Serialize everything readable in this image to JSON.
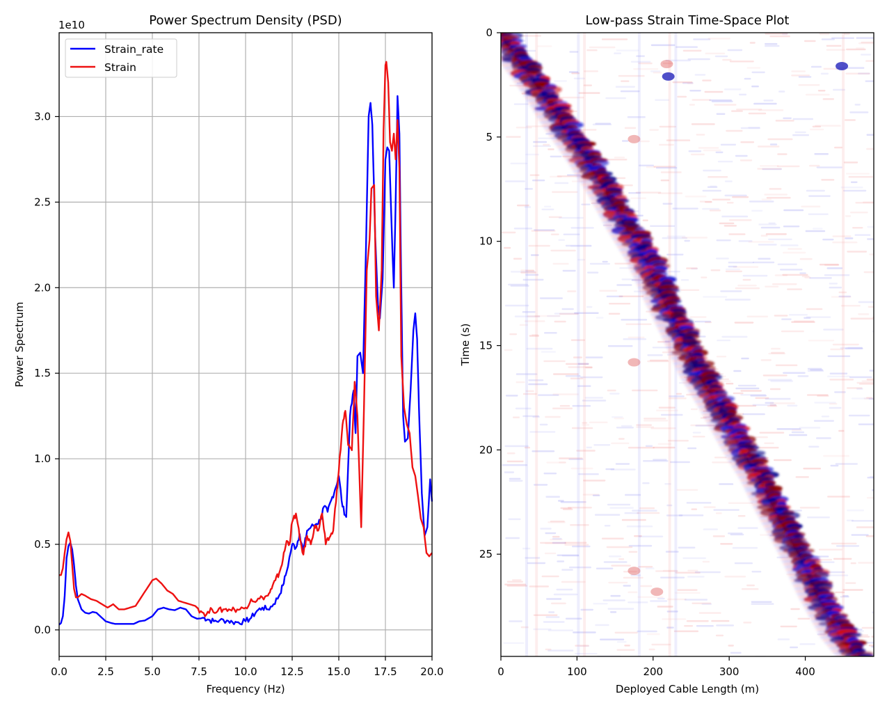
{
  "chart_data": [
    {
      "type": "line",
      "title": "Power Spectrum Density (PSD)",
      "xlabel": "Frequency (Hz)",
      "ylabel": "Power Spectrum",
      "y_offset_label": "1e10",
      "y_scale": 10000000000.0,
      "xlim": [
        0,
        20
      ],
      "ylim": [
        -0.155,
        3.49
      ],
      "xticks": [
        0,
        2.5,
        5,
        7.5,
        10,
        12.5,
        15,
        17.5,
        20
      ],
      "xtick_labels": [
        "0.0",
        "2.5",
        "5.0",
        "7.5",
        "10.0",
        "12.5",
        "15.0",
        "17.5",
        "20.0"
      ],
      "yticks": [
        0,
        0.5,
        1.0,
        1.5,
        2.0,
        2.5,
        3.0
      ],
      "ytick_labels": [
        "0.0",
        "0.5",
        "1.0",
        "1.5",
        "2.0",
        "2.5",
        "3.0"
      ],
      "grid": true,
      "legend_position": "top-left",
      "series": [
        {
          "name": "Strain_rate",
          "color": "#0000ff",
          "points": [
            [
              0.0,
              0.03
            ],
            [
              0.1,
              0.04
            ],
            [
              0.2,
              0.08
            ],
            [
              0.3,
              0.2
            ],
            [
              0.4,
              0.42
            ],
            [
              0.5,
              0.49
            ],
            [
              0.6,
              0.51
            ],
            [
              0.7,
              0.47
            ],
            [
              0.8,
              0.38
            ],
            [
              0.9,
              0.26
            ],
            [
              1.0,
              0.18
            ],
            [
              1.2,
              0.12
            ],
            [
              1.4,
              0.1
            ],
            [
              1.6,
              0.095
            ],
            [
              1.8,
              0.105
            ],
            [
              2.0,
              0.1
            ],
            [
              2.2,
              0.08
            ],
            [
              2.5,
              0.05
            ],
            [
              2.8,
              0.04
            ],
            [
              3.0,
              0.035
            ],
            [
              3.5,
              0.035
            ],
            [
              4.0,
              0.035
            ],
            [
              4.3,
              0.05
            ],
            [
              4.6,
              0.055
            ],
            [
              5.0,
              0.08
            ],
            [
              5.3,
              0.12
            ],
            [
              5.6,
              0.13
            ],
            [
              5.9,
              0.12
            ],
            [
              6.2,
              0.115
            ],
            [
              6.5,
              0.13
            ],
            [
              6.8,
              0.12
            ],
            [
              7.1,
              0.08
            ],
            [
              7.4,
              0.065
            ],
            [
              7.8,
              0.07
            ],
            [
              8.0,
              0.06
            ],
            [
              8.3,
              0.05
            ],
            [
              8.6,
              0.055
            ],
            [
              9.0,
              0.055
            ],
            [
              9.3,
              0.045
            ],
            [
              9.6,
              0.045
            ],
            [
              10.0,
              0.05
            ],
            [
              10.3,
              0.07
            ],
            [
              10.6,
              0.11
            ],
            [
              10.9,
              0.13
            ],
            [
              11.2,
              0.12
            ],
            [
              11.5,
              0.15
            ],
            [
              11.8,
              0.2
            ],
            [
              12.0,
              0.26
            ],
            [
              12.2,
              0.34
            ],
            [
              12.5,
              0.5
            ],
            [
              12.7,
              0.48
            ],
            [
              12.9,
              0.56
            ],
            [
              13.1,
              0.46
            ],
            [
              13.3,
              0.58
            ],
            [
              13.5,
              0.6
            ],
            [
              13.8,
              0.62
            ],
            [
              14.0,
              0.64
            ],
            [
              14.2,
              0.72
            ],
            [
              14.4,
              0.69
            ],
            [
              14.6,
              0.76
            ],
            [
              14.8,
              0.82
            ],
            [
              15.0,
              0.9
            ],
            [
              15.2,
              0.72
            ],
            [
              15.4,
              0.66
            ],
            [
              15.6,
              1.25
            ],
            [
              15.8,
              1.4
            ],
            [
              15.9,
              1.15
            ],
            [
              16.0,
              1.6
            ],
            [
              16.15,
              1.62
            ],
            [
              16.3,
              1.5
            ],
            [
              16.45,
              2.2
            ],
            [
              16.6,
              3.0
            ],
            [
              16.7,
              3.08
            ],
            [
              16.8,
              2.95
            ],
            [
              16.95,
              2.3
            ],
            [
              17.1,
              1.9
            ],
            [
              17.2,
              1.82
            ],
            [
              17.35,
              2.05
            ],
            [
              17.5,
              2.75
            ],
            [
              17.6,
              2.82
            ],
            [
              17.7,
              2.8
            ],
            [
              17.85,
              2.3
            ],
            [
              17.95,
              2.0
            ],
            [
              18.05,
              2.5
            ],
            [
              18.15,
              3.12
            ],
            [
              18.25,
              2.9
            ],
            [
              18.35,
              2.0
            ],
            [
              18.45,
              1.25
            ],
            [
              18.55,
              1.1
            ],
            [
              18.7,
              1.12
            ],
            [
              18.85,
              1.4
            ],
            [
              19.0,
              1.75
            ],
            [
              19.1,
              1.85
            ],
            [
              19.2,
              1.7
            ],
            [
              19.3,
              1.3
            ],
            [
              19.45,
              0.8
            ],
            [
              19.6,
              0.55
            ],
            [
              19.75,
              0.6
            ],
            [
              19.9,
              0.88
            ],
            [
              20.0,
              0.75
            ]
          ]
        },
        {
          "name": "Strain",
          "color": "#ee1111",
          "points": [
            [
              0.0,
              0.32
            ],
            [
              0.1,
              0.32
            ],
            [
              0.2,
              0.36
            ],
            [
              0.3,
              0.45
            ],
            [
              0.4,
              0.53
            ],
            [
              0.5,
              0.57
            ],
            [
              0.6,
              0.52
            ],
            [
              0.7,
              0.38
            ],
            [
              0.8,
              0.24
            ],
            [
              0.9,
              0.19
            ],
            [
              1.0,
              0.19
            ],
            [
              1.2,
              0.21
            ],
            [
              1.4,
              0.2
            ],
            [
              1.7,
              0.18
            ],
            [
              2.0,
              0.17
            ],
            [
              2.3,
              0.15
            ],
            [
              2.6,
              0.13
            ],
            [
              2.9,
              0.15
            ],
            [
              3.2,
              0.12
            ],
            [
              3.5,
              0.12
            ],
            [
              3.8,
              0.13
            ],
            [
              4.1,
              0.14
            ],
            [
              4.4,
              0.19
            ],
            [
              4.7,
              0.24
            ],
            [
              5.0,
              0.29
            ],
            [
              5.2,
              0.3
            ],
            [
              5.5,
              0.27
            ],
            [
              5.8,
              0.23
            ],
            [
              6.1,
              0.21
            ],
            [
              6.4,
              0.17
            ],
            [
              6.7,
              0.16
            ],
            [
              7.0,
              0.15
            ],
            [
              7.3,
              0.14
            ],
            [
              7.6,
              0.11
            ],
            [
              7.9,
              0.09
            ],
            [
              8.2,
              0.12
            ],
            [
              8.5,
              0.11
            ],
            [
              8.8,
              0.12
            ],
            [
              9.1,
              0.12
            ],
            [
              9.4,
              0.12
            ],
            [
              9.7,
              0.12
            ],
            [
              10.0,
              0.13
            ],
            [
              10.3,
              0.18
            ],
            [
              10.6,
              0.17
            ],
            [
              10.9,
              0.19
            ],
            [
              11.2,
              0.2
            ],
            [
              11.4,
              0.24
            ],
            [
              11.6,
              0.29
            ],
            [
              11.8,
              0.33
            ],
            [
              12.0,
              0.41
            ],
            [
              12.2,
              0.52
            ],
            [
              12.35,
              0.5
            ],
            [
              12.5,
              0.63
            ],
            [
              12.7,
              0.68
            ],
            [
              12.9,
              0.54
            ],
            [
              13.1,
              0.44
            ],
            [
              13.3,
              0.55
            ],
            [
              13.5,
              0.5
            ],
            [
              13.7,
              0.61
            ],
            [
              13.9,
              0.58
            ],
            [
              14.1,
              0.68
            ],
            [
              14.3,
              0.5
            ],
            [
              14.5,
              0.54
            ],
            [
              14.7,
              0.58
            ],
            [
              14.9,
              0.82
            ],
            [
              15.0,
              0.93
            ],
            [
              15.2,
              1.2
            ],
            [
              15.35,
              1.28
            ],
            [
              15.5,
              1.08
            ],
            [
              15.7,
              1.05
            ],
            [
              15.85,
              1.45
            ],
            [
              16.0,
              1.25
            ],
            [
              16.2,
              0.6
            ],
            [
              16.35,
              1.3
            ],
            [
              16.5,
              2.1
            ],
            [
              16.65,
              2.28
            ],
            [
              16.75,
              2.58
            ],
            [
              16.9,
              2.6
            ],
            [
              17.0,
              1.95
            ],
            [
              17.15,
              1.75
            ],
            [
              17.3,
              2.1
            ],
            [
              17.4,
              2.92
            ],
            [
              17.5,
              3.3
            ],
            [
              17.55,
              3.32
            ],
            [
              17.65,
              3.2
            ],
            [
              17.75,
              2.85
            ],
            [
              17.85,
              2.8
            ],
            [
              17.95,
              2.9
            ],
            [
              18.05,
              2.75
            ],
            [
              18.15,
              2.98
            ],
            [
              18.25,
              2.7
            ],
            [
              18.35,
              1.6
            ],
            [
              18.5,
              1.3
            ],
            [
              18.65,
              1.2
            ],
            [
              18.8,
              1.15
            ],
            [
              18.95,
              0.95
            ],
            [
              19.1,
              0.9
            ],
            [
              19.25,
              0.78
            ],
            [
              19.4,
              0.65
            ],
            [
              19.55,
              0.6
            ],
            [
              19.7,
              0.45
            ],
            [
              19.85,
              0.43
            ],
            [
              20.0,
              0.45
            ]
          ]
        }
      ]
    },
    {
      "type": "heatmap",
      "title": "Low-pass Strain Time-Space Plot",
      "xlabel": "Deployed Cable Length (m)",
      "ylabel": "Time (s)",
      "xlim": [
        0,
        490
      ],
      "ylim": [
        29.9,
        0
      ],
      "xticks": [
        0,
        100,
        200,
        300,
        400
      ],
      "xtick_labels": [
        "0",
        "100",
        "200",
        "300",
        "400"
      ],
      "yticks": [
        0,
        5,
        10,
        15,
        20,
        25
      ],
      "ytick_labels": [
        "0",
        "5",
        "10",
        "15",
        "20",
        "25"
      ],
      "colormap": "seismic",
      "colors": {
        "negative": "#00008b",
        "zero": "#ffffff",
        "positive": "#8b0000"
      },
      "moveout_band": {
        "description": "Diagonal wave arrival band of alternating red/blue lobes",
        "trace": [
          [
            0,
            0.0
          ],
          [
            30,
            1.5
          ],
          [
            60,
            3.0
          ],
          [
            85,
            4.5
          ],
          [
            110,
            5.8
          ],
          [
            140,
            7.5
          ],
          [
            170,
            9.5
          ],
          [
            195,
            11.0
          ],
          [
            220,
            13.0
          ],
          [
            240,
            14.5
          ],
          [
            265,
            16.5
          ],
          [
            290,
            18.0
          ],
          [
            320,
            20.0
          ],
          [
            345,
            21.5
          ],
          [
            365,
            23.0
          ],
          [
            395,
            25.0
          ],
          [
            420,
            27.0
          ],
          [
            450,
            29.0
          ],
          [
            470,
            29.9
          ]
        ]
      },
      "features": [
        {
          "label": "blue spot",
          "x": 220,
          "t": 2.1,
          "sign": -1
        },
        {
          "label": "red spot",
          "x": 218,
          "t": 1.5,
          "sign": 1
        },
        {
          "label": "red spot",
          "x": 175,
          "t": 15.8,
          "sign": 1
        },
        {
          "label": "red spot",
          "x": 175,
          "t": 25.8,
          "sign": 1
        },
        {
          "label": "red spot",
          "x": 205,
          "t": 26.8,
          "sign": 1
        },
        {
          "label": "red spot",
          "x": 175,
          "t": 5.1,
          "sign": 1
        },
        {
          "label": "blue spot",
          "x": 448,
          "t": 1.6,
          "sign": -1
        }
      ]
    }
  ]
}
